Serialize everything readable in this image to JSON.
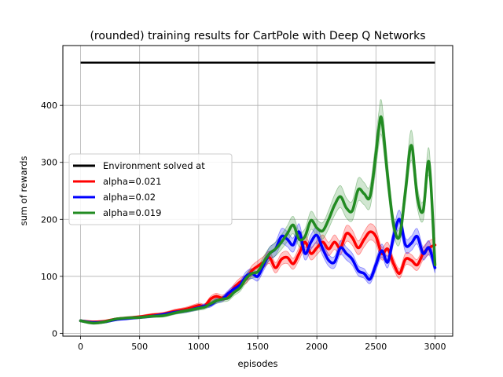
{
  "chart_data": {
    "type": "line",
    "title": "(rounded) training results for CartPole with Deep Q Networks",
    "xlabel": "episodes",
    "ylabel": "sum of rewards",
    "xlim": [
      -150,
      3150
    ],
    "ylim": [
      -5,
      505
    ],
    "xticks": [
      0,
      500,
      1000,
      1500,
      2000,
      2500,
      3000
    ],
    "yticks": [
      0,
      100,
      200,
      300,
      400
    ],
    "grid": true,
    "legend_position": "center-left",
    "reference_line": {
      "name": "Environment solved at",
      "y": 475,
      "x_range": [
        0,
        3000
      ],
      "color": "#000000"
    },
    "series": [
      {
        "name": "alpha=0.021",
        "color": "#ff0000",
        "band_color": "#ff0000",
        "points": [
          [
            0,
            22
          ],
          [
            100,
            20
          ],
          [
            200,
            21
          ],
          [
            300,
            25
          ],
          [
            400,
            27
          ],
          [
            500,
            29
          ],
          [
            600,
            32
          ],
          [
            700,
            34
          ],
          [
            800,
            39
          ],
          [
            900,
            43
          ],
          [
            1000,
            49
          ],
          [
            1050,
            48
          ],
          [
            1100,
            60
          ],
          [
            1150,
            65
          ],
          [
            1200,
            62
          ],
          [
            1250,
            68
          ],
          [
            1300,
            80
          ],
          [
            1350,
            90
          ],
          [
            1400,
            95
          ],
          [
            1450,
            110
          ],
          [
            1500,
            118
          ],
          [
            1550,
            125
          ],
          [
            1600,
            133
          ],
          [
            1650,
            115
          ],
          [
            1700,
            130
          ],
          [
            1750,
            133
          ],
          [
            1800,
            122
          ],
          [
            1850,
            140
          ],
          [
            1900,
            160
          ],
          [
            1950,
            140
          ],
          [
            2000,
            150
          ],
          [
            2050,
            160
          ],
          [
            2100,
            148
          ],
          [
            2150,
            160
          ],
          [
            2200,
            150
          ],
          [
            2250,
            175
          ],
          [
            2300,
            168
          ],
          [
            2350,
            150
          ],
          [
            2400,
            165
          ],
          [
            2450,
            178
          ],
          [
            2500,
            170
          ],
          [
            2550,
            140
          ],
          [
            2600,
            148
          ],
          [
            2650,
            122
          ],
          [
            2700,
            105
          ],
          [
            2750,
            130
          ],
          [
            2800,
            128
          ],
          [
            2850,
            120
          ],
          [
            2900,
            140
          ],
          [
            2950,
            150
          ],
          [
            3000,
            155
          ]
        ]
      },
      {
        "name": "alpha=0.02",
        "color": "#0000ff",
        "band_color": "#0000ff",
        "points": [
          [
            0,
            22
          ],
          [
            100,
            19
          ],
          [
            200,
            20
          ],
          [
            300,
            24
          ],
          [
            400,
            26
          ],
          [
            500,
            28
          ],
          [
            600,
            30
          ],
          [
            700,
            33
          ],
          [
            800,
            37
          ],
          [
            900,
            40
          ],
          [
            1000,
            45
          ],
          [
            1050,
            48
          ],
          [
            1100,
            50
          ],
          [
            1150,
            57
          ],
          [
            1200,
            60
          ],
          [
            1250,
            70
          ],
          [
            1300,
            78
          ],
          [
            1350,
            85
          ],
          [
            1400,
            100
          ],
          [
            1450,
            105
          ],
          [
            1500,
            100
          ],
          [
            1550,
            120
          ],
          [
            1600,
            140
          ],
          [
            1650,
            148
          ],
          [
            1700,
            170
          ],
          [
            1750,
            165
          ],
          [
            1800,
            155
          ],
          [
            1850,
            178
          ],
          [
            1900,
            140
          ],
          [
            1950,
            160
          ],
          [
            2000,
            172
          ],
          [
            2050,
            148
          ],
          [
            2100,
            128
          ],
          [
            2150,
            125
          ],
          [
            2200,
            150
          ],
          [
            2250,
            140
          ],
          [
            2300,
            130
          ],
          [
            2350,
            110
          ],
          [
            2400,
            105
          ],
          [
            2450,
            95
          ],
          [
            2500,
            120
          ],
          [
            2550,
            145
          ],
          [
            2600,
            125
          ],
          [
            2650,
            170
          ],
          [
            2700,
            200
          ],
          [
            2750,
            155
          ],
          [
            2800,
            158
          ],
          [
            2850,
            170
          ],
          [
            2900,
            140
          ],
          [
            2950,
            150
          ],
          [
            3000,
            115
          ]
        ]
      },
      {
        "name": "alpha=0.019",
        "color": "#228b22",
        "band_color": "#2e8b2e",
        "points": [
          [
            0,
            22
          ],
          [
            100,
            18
          ],
          [
            200,
            20
          ],
          [
            300,
            25
          ],
          [
            400,
            27
          ],
          [
            500,
            28
          ],
          [
            600,
            30
          ],
          [
            700,
            31
          ],
          [
            800,
            36
          ],
          [
            900,
            40
          ],
          [
            1000,
            44
          ],
          [
            1050,
            46
          ],
          [
            1100,
            52
          ],
          [
            1150,
            57
          ],
          [
            1200,
            60
          ],
          [
            1250,
            62
          ],
          [
            1300,
            72
          ],
          [
            1350,
            80
          ],
          [
            1400,
            96
          ],
          [
            1450,
            105
          ],
          [
            1500,
            108
          ],
          [
            1550,
            125
          ],
          [
            1600,
            140
          ],
          [
            1650,
            148
          ],
          [
            1700,
            160
          ],
          [
            1750,
            175
          ],
          [
            1800,
            190
          ],
          [
            1850,
            165
          ],
          [
            1900,
            170
          ],
          [
            1950,
            198
          ],
          [
            2000,
            185
          ],
          [
            2050,
            180
          ],
          [
            2100,
            200
          ],
          [
            2150,
            225
          ],
          [
            2200,
            240
          ],
          [
            2250,
            220
          ],
          [
            2300,
            215
          ],
          [
            2350,
            252
          ],
          [
            2400,
            245
          ],
          [
            2450,
            240
          ],
          [
            2500,
            315
          ],
          [
            2525,
            360
          ],
          [
            2550,
            375
          ],
          [
            2600,
            275
          ],
          [
            2650,
            190
          ],
          [
            2700,
            170
          ],
          [
            2750,
            250
          ],
          [
            2800,
            330
          ],
          [
            2850,
            240
          ],
          [
            2900,
            215
          ],
          [
            2950,
            300
          ],
          [
            3000,
            120
          ]
        ]
      }
    ]
  }
}
